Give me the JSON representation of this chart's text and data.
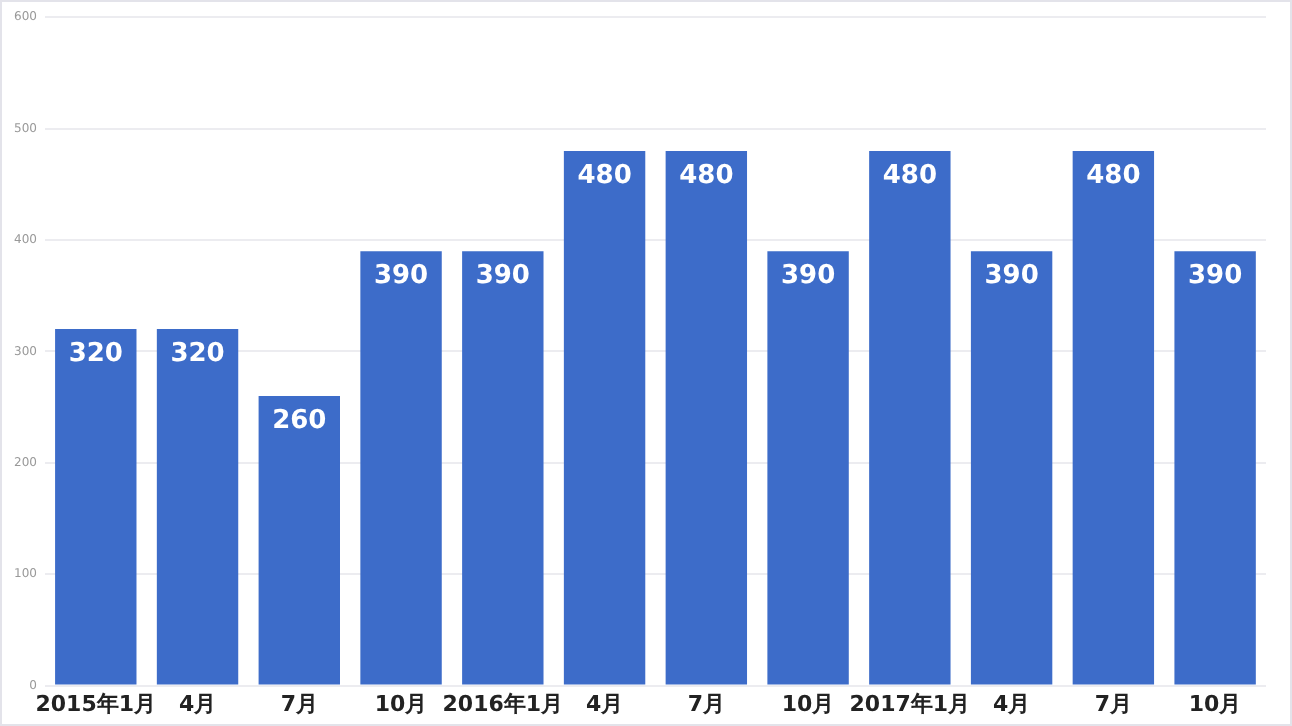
{
  "chart_data": {
    "type": "bar",
    "categories": [
      "2015年1月",
      "4月",
      "7月",
      "10月",
      "2016年1月",
      "4月",
      "7月",
      "10月",
      "2017年1月",
      "4月",
      "7月",
      "10月"
    ],
    "values": [
      320,
      320,
      260,
      390,
      390,
      480,
      480,
      390,
      480,
      390,
      480,
      390
    ],
    "color": "#3d6cc9",
    "ylim": [
      0,
      600
    ],
    "yticks": [
      0,
      100,
      200,
      300,
      400,
      500,
      600
    ],
    "grid": "y",
    "data_labels": true,
    "legend": false
  }
}
